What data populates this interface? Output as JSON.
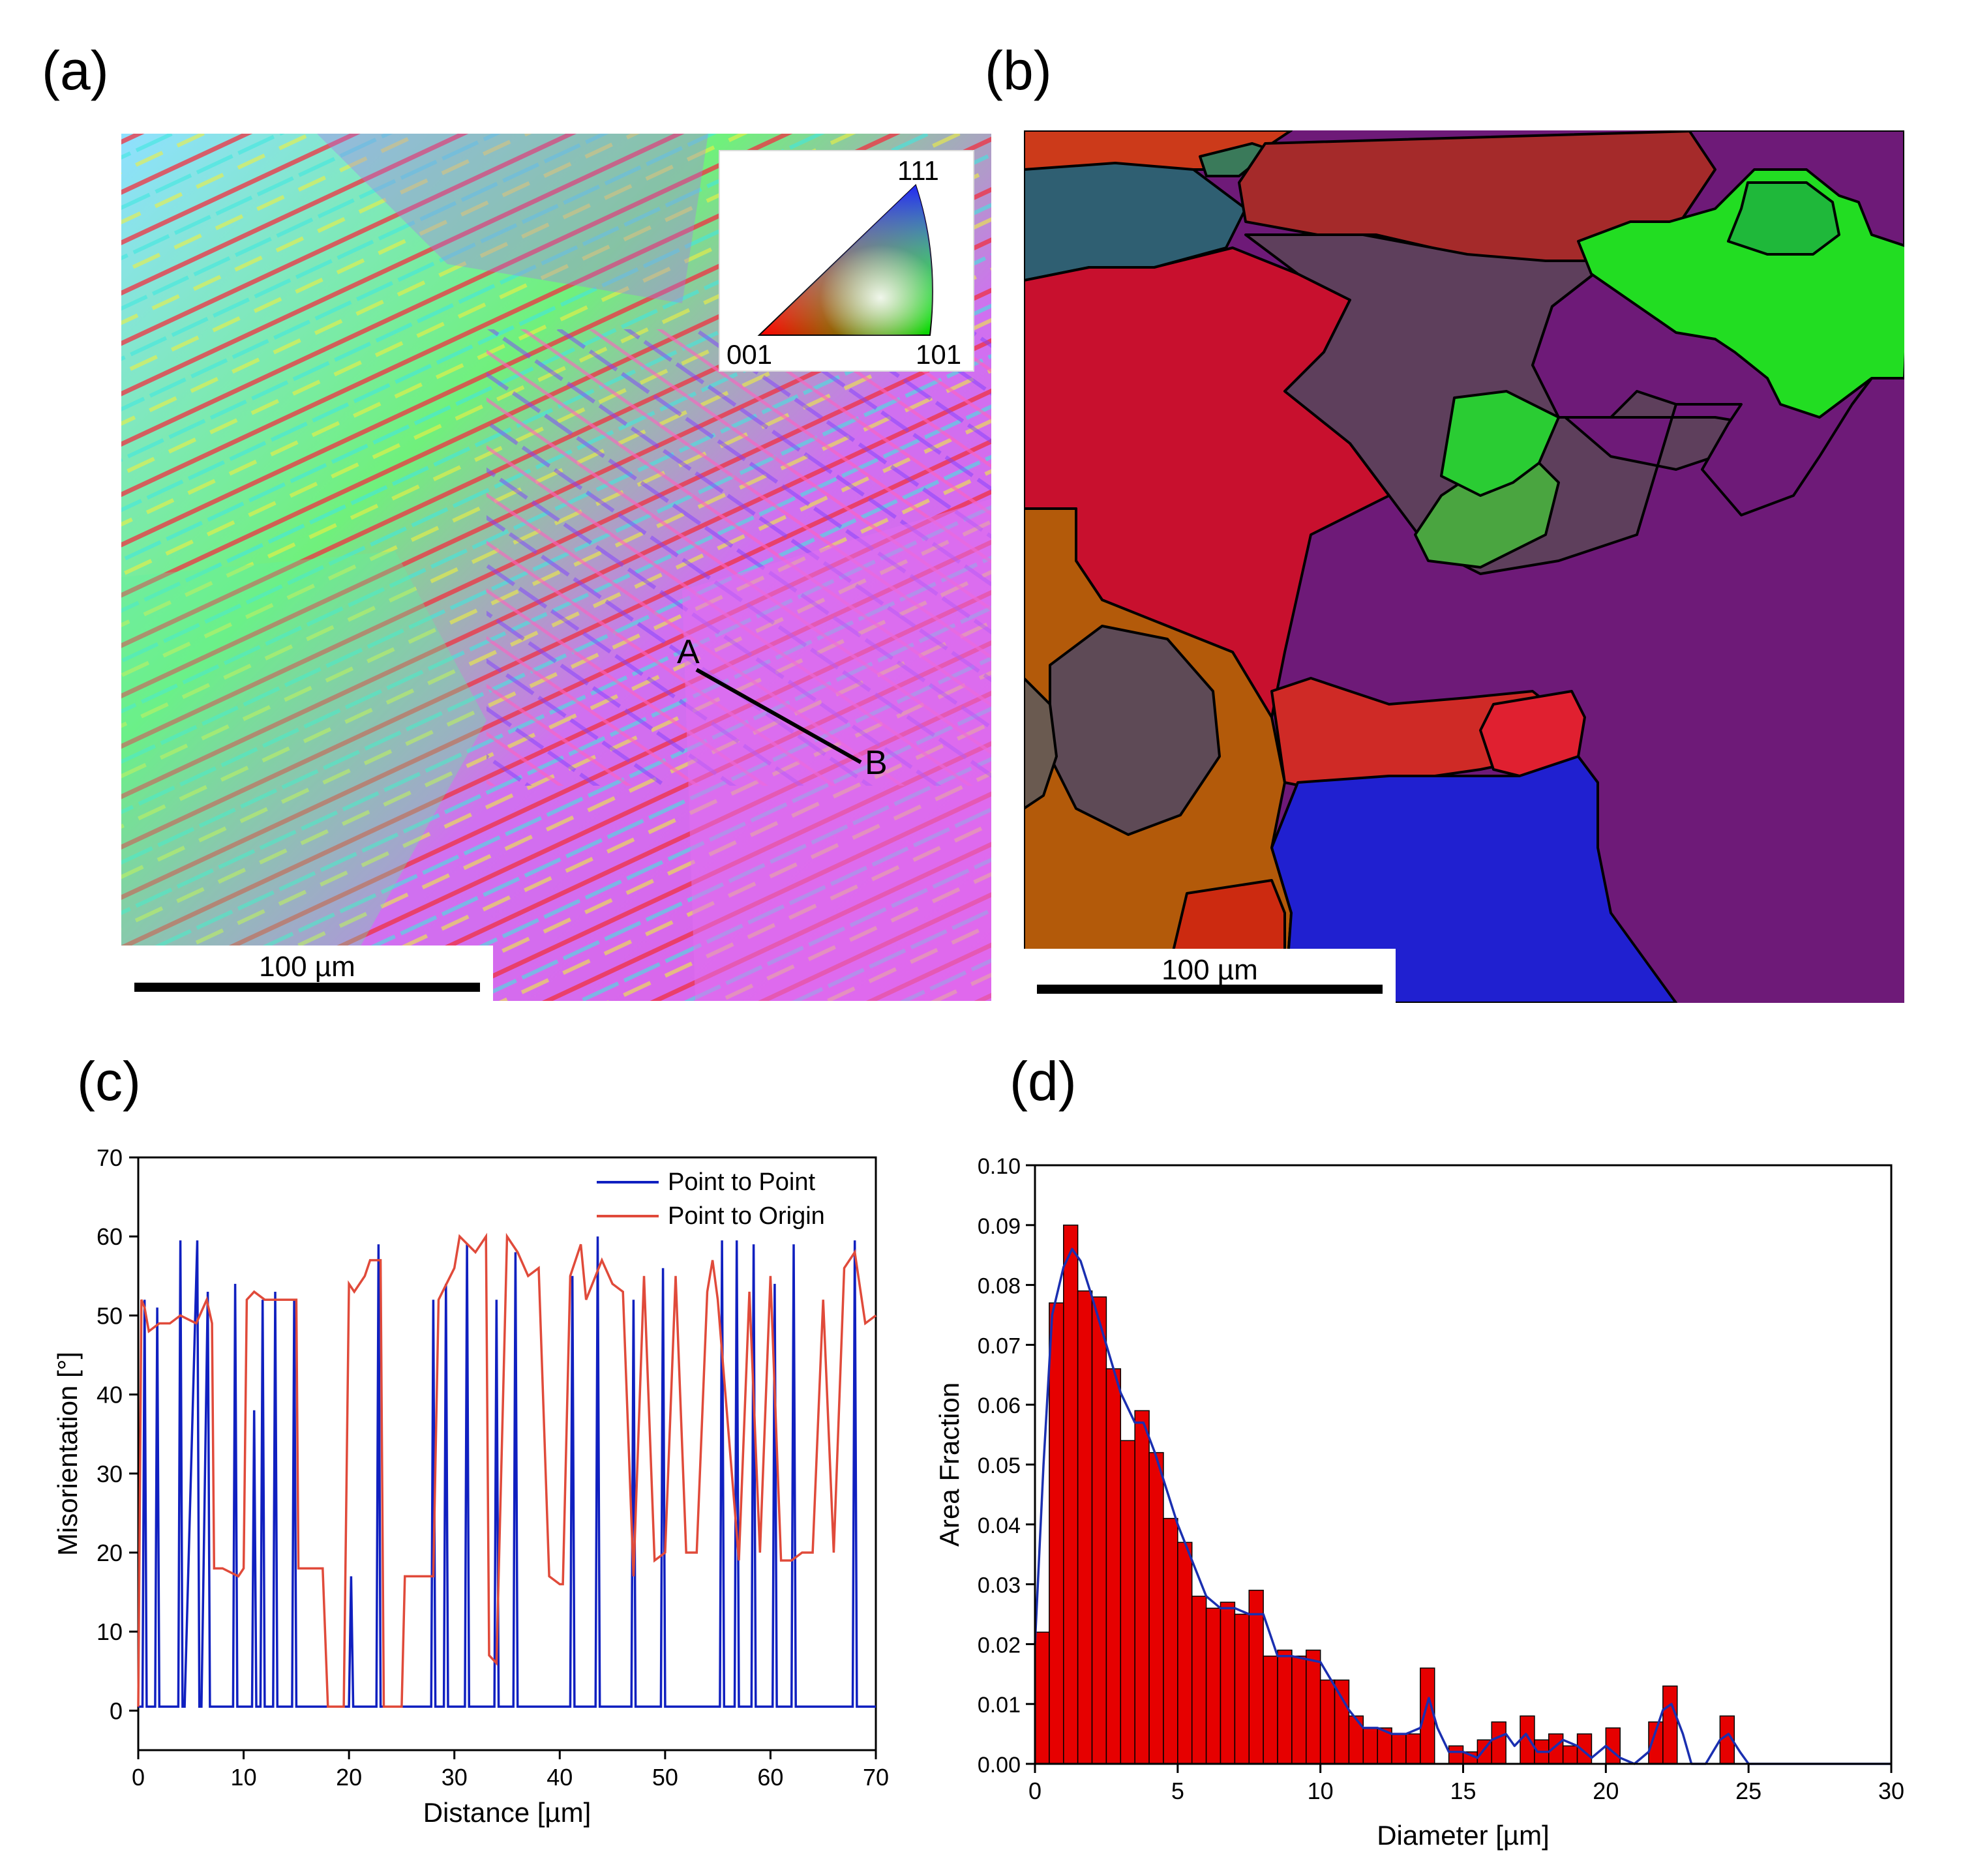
{
  "panels": {
    "a": {
      "label": "(a)",
      "scale_bar": "100 µm",
      "ipf_labels": [
        "111",
        "001",
        "101"
      ],
      "line_points": [
        "A",
        "B"
      ]
    },
    "b": {
      "label": "(b)",
      "scale_bar": "100 µm"
    },
    "c": {
      "label": "(c)"
    },
    "d": {
      "label": "(d)"
    }
  },
  "chart_data": [
    {
      "type": "line",
      "xlabel": "Distance [µm]",
      "ylabel": "Misorientation [°]",
      "xlim": [
        0,
        70
      ],
      "ylim": [
        -5,
        70
      ],
      "xticks": [
        0,
        10,
        20,
        30,
        40,
        50,
        60,
        70
      ],
      "yticks": [
        0,
        10,
        20,
        30,
        40,
        50,
        60,
        70
      ],
      "legend_position": "top-right",
      "series": [
        {
          "name": "Point to Point",
          "color": "#1020c0",
          "x": [
            0,
            0.4,
            0.6,
            0.8,
            1.6,
            1.8,
            2.0,
            3.8,
            4.0,
            4.2,
            4.4,
            5.6,
            5.8,
            6.0,
            6.6,
            6.8,
            7.0,
            9.0,
            9.2,
            9.4,
            10.8,
            11.0,
            11.2,
            11.6,
            11.8,
            12.0,
            12.8,
            13.0,
            13.2,
            14.6,
            14.8,
            15.0,
            20.0,
            20.2,
            20.4,
            22.6,
            22.8,
            23.0,
            27.8,
            28.0,
            28.2,
            29.0,
            29.2,
            29.4,
            31.0,
            31.2,
            31.4,
            33.8,
            34.0,
            34.2,
            35.6,
            35.8,
            36.0,
            41.0,
            41.2,
            41.4,
            43.4,
            43.6,
            43.8,
            46.8,
            47.0,
            47.2,
            49.6,
            49.8,
            50.0,
            55.2,
            55.4,
            55.6,
            56.6,
            56.8,
            57.0,
            58.2,
            58.4,
            58.6,
            60.2,
            60.4,
            60.6,
            62.0,
            62.2,
            62.4,
            67.8,
            68.0,
            68.2,
            70
          ],
          "y": [
            0.5,
            0.5,
            52,
            0.5,
            0.5,
            51,
            0.5,
            0.5,
            59.5,
            0.5,
            0.5,
            59.5,
            0.5,
            0.5,
            53,
            0.5,
            0.5,
            0.5,
            54,
            0.5,
            0.5,
            38,
            0.5,
            0.5,
            52,
            0.5,
            0.5,
            53,
            0.5,
            0.5,
            52,
            0.5,
            0.5,
            17,
            0.5,
            0.5,
            59,
            0.5,
            0.5,
            52,
            0.5,
            0.5,
            54,
            0.5,
            0.5,
            59,
            0.5,
            0.5,
            52,
            0.5,
            0.5,
            58,
            0.5,
            0.5,
            55,
            0.5,
            0.5,
            60,
            0.5,
            0.5,
            52,
            0.5,
            0.5,
            56,
            0.5,
            0.5,
            59.5,
            0.5,
            0.5,
            59.5,
            0.5,
            0.5,
            59,
            0.5,
            0.5,
            54,
            0.5,
            0.5,
            59,
            0.5,
            0.5,
            59.5,
            0.5,
            0.5
          ]
        },
        {
          "name": "Point to Origin",
          "color": "#e04a3a",
          "x": [
            0,
            0.3,
            0.6,
            1.0,
            2.0,
            3.0,
            4.0,
            5.5,
            6.5,
            7.0,
            7.2,
            8.0,
            9.5,
            10.0,
            10.3,
            11.0,
            12.0,
            13.0,
            14.0,
            15.0,
            15.2,
            17.5,
            18.0,
            19.5,
            20.0,
            20.5,
            21.5,
            22.0,
            23.0,
            23.3,
            25.0,
            25.3,
            26.5,
            27.0,
            28.0,
            28.5,
            30.0,
            30.5,
            32.0,
            33.0,
            33.3,
            34.0,
            35.0,
            36.0,
            37.0,
            38.0,
            39.0,
            40.0,
            40.3,
            41.0,
            42.0,
            42.5,
            44.0,
            45.0,
            46.0,
            47.0,
            48.0,
            49.0,
            50.0,
            51.0,
            52.0,
            53.0,
            54.0,
            54.5,
            55.0,
            57.0,
            58.0,
            59.0,
            60.0,
            61.0,
            62.0,
            63.0,
            64.0,
            65.0,
            66.0,
            67.0,
            68.0,
            69.0,
            70
          ],
          "y": [
            0.5,
            52,
            51,
            48,
            49,
            49,
            50,
            49,
            52,
            49,
            18,
            18,
            17,
            18,
            52,
            53,
            52,
            52,
            52,
            52,
            18,
            18,
            0.5,
            0.5,
            54,
            53,
            55,
            57,
            57,
            0.5,
            0.5,
            17,
            17,
            17,
            17,
            52,
            56,
            60,
            58,
            60,
            7,
            6,
            60,
            58,
            55,
            56,
            17,
            16,
            16,
            55,
            59,
            52,
            57,
            54,
            53,
            17,
            55,
            19,
            20,
            55,
            20,
            20,
            53,
            57,
            52,
            19,
            53,
            20,
            55,
            19,
            19,
            20,
            20,
            52,
            20,
            56,
            58,
            49,
            50
          ]
        }
      ]
    },
    {
      "type": "bar",
      "xlabel": "Diameter [µm]",
      "ylabel": "Area Fraction",
      "xlim": [
        0,
        30
      ],
      "ylim": [
        0,
        0.1
      ],
      "xticks": [
        0,
        5,
        10,
        15,
        20,
        25,
        30
      ],
      "yticks": [
        "0.00",
        "0.01",
        "0.02",
        "0.03",
        "0.04",
        "0.05",
        "0.06",
        "0.07",
        "0.08",
        "0.09",
        "0.10"
      ],
      "bin_width": 0.5,
      "bar_color": "#e60000",
      "curve_color": "#1a2fb0",
      "bin_starts": [
        0,
        0.5,
        1.0,
        1.5,
        2.0,
        2.5,
        3.0,
        3.5,
        4.0,
        4.5,
        5.0,
        5.5,
        6.0,
        6.5,
        7.0,
        7.5,
        8.0,
        8.5,
        9.0,
        9.5,
        10.0,
        10.5,
        11.0,
        11.5,
        12.0,
        12.5,
        13.0,
        13.5,
        14.0,
        14.5,
        15.0,
        15.5,
        16.0,
        16.5,
        17.0,
        17.5,
        18.0,
        18.5,
        19.0,
        19.5,
        20.0,
        20.5,
        21.0,
        21.5,
        22.0,
        22.5,
        23.0,
        23.5,
        24.0,
        24.5
      ],
      "values": [
        0.022,
        0.077,
        0.09,
        0.079,
        0.078,
        0.066,
        0.054,
        0.059,
        0.052,
        0.041,
        0.037,
        0.028,
        0.026,
        0.027,
        0.025,
        0.029,
        0.018,
        0.019,
        0.018,
        0.019,
        0.014,
        0.014,
        0.008,
        0.006,
        0.006,
        0.005,
        0.005,
        0.016,
        0.0,
        0.003,
        0.002,
        0.004,
        0.007,
        0.0,
        0.008,
        0.004,
        0.005,
        0.003,
        0.005,
        0.0,
        0.006,
        0.0,
        0.0,
        0.007,
        0.013,
        0.0,
        0.0,
        0.0,
        0.008,
        0.0
      ],
      "curve_x": [
        0,
        0.3,
        0.6,
        1.0,
        1.3,
        1.6,
        2.0,
        2.5,
        3.0,
        3.5,
        3.8,
        4.2,
        4.6,
        5.0,
        5.5,
        6.0,
        6.5,
        7.0,
        7.5,
        8.0,
        8.5,
        9.0,
        10.0,
        10.5,
        11.0,
        11.5,
        12.0,
        12.5,
        13.0,
        13.5,
        13.8,
        14.1,
        14.5,
        15.0,
        15.5,
        16.0,
        16.5,
        16.8,
        17.2,
        17.6,
        18.0,
        18.5,
        19.0,
        19.5,
        20.0,
        20.5,
        21.0,
        21.5,
        22.0,
        22.3,
        22.7,
        23.0,
        23.5,
        24.0,
        24.3,
        24.7,
        25.0,
        30
      ],
      "curve_y": [
        0.02,
        0.05,
        0.075,
        0.083,
        0.086,
        0.084,
        0.078,
        0.07,
        0.062,
        0.057,
        0.057,
        0.052,
        0.046,
        0.04,
        0.034,
        0.028,
        0.026,
        0.026,
        0.025,
        0.025,
        0.018,
        0.018,
        0.017,
        0.013,
        0.009,
        0.006,
        0.006,
        0.005,
        0.005,
        0.006,
        0.011,
        0.006,
        0.002,
        0.002,
        0.001,
        0.004,
        0.005,
        0.003,
        0.005,
        0.002,
        0.002,
        0.004,
        0.003,
        0.001,
        0.003,
        0.001,
        0.0,
        0.002,
        0.009,
        0.01,
        0.005,
        0.0,
        0.0,
        0.004,
        0.005,
        0.002,
        0.0,
        0.0
      ]
    }
  ]
}
